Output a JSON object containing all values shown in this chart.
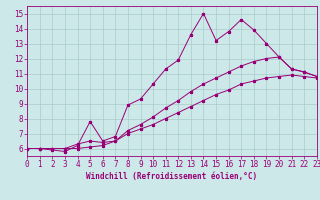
{
  "xlabel": "Windchill (Refroidissement éolien,°C)",
  "bg_color": "#cce8e8",
  "grid_color": "#aacccc",
  "line_color": "#990077",
  "xmin": 0,
  "xmax": 23,
  "ymin": 5.5,
  "ymax": 15.5,
  "yticks": [
    6,
    7,
    8,
    9,
    10,
    11,
    12,
    13,
    14,
    15
  ],
  "xticks": [
    0,
    1,
    2,
    3,
    4,
    5,
    6,
    7,
    8,
    9,
    10,
    11,
    12,
    13,
    14,
    15,
    16,
    17,
    18,
    19,
    20,
    21,
    22,
    23
  ],
  "line1_x": [
    0,
    1,
    2,
    3,
    4,
    5,
    6,
    7,
    8,
    9,
    10,
    11,
    12,
    13,
    14,
    15,
    16,
    17,
    18,
    19,
    20,
    21,
    22,
    23
  ],
  "line1_y": [
    6.0,
    6.0,
    5.9,
    5.8,
    6.2,
    7.8,
    6.5,
    6.8,
    8.9,
    9.3,
    10.3,
    11.3,
    11.9,
    13.6,
    15.0,
    13.2,
    13.8,
    14.6,
    13.9,
    13.0,
    12.1,
    11.3,
    11.1,
    10.8
  ],
  "line2_x": [
    0,
    1,
    2,
    3,
    4,
    5,
    6,
    7,
    8,
    9,
    10,
    11,
    12,
    13,
    14,
    15,
    16,
    17,
    18,
    19,
    20,
    21,
    22,
    23
  ],
  "line2_y": [
    6.0,
    6.0,
    6.0,
    6.0,
    6.3,
    6.5,
    6.4,
    6.5,
    7.2,
    7.6,
    8.1,
    8.7,
    9.2,
    9.8,
    10.3,
    10.7,
    11.1,
    11.5,
    11.8,
    12.0,
    12.1,
    11.3,
    11.1,
    10.8
  ],
  "line3_x": [
    0,
    1,
    2,
    3,
    4,
    5,
    6,
    7,
    8,
    9,
    10,
    11,
    12,
    13,
    14,
    15,
    16,
    17,
    18,
    19,
    20,
    21,
    22,
    23
  ],
  "line3_y": [
    6.0,
    6.0,
    6.0,
    6.0,
    6.0,
    6.1,
    6.2,
    6.5,
    7.0,
    7.3,
    7.6,
    8.0,
    8.4,
    8.8,
    9.2,
    9.6,
    9.9,
    10.3,
    10.5,
    10.7,
    10.8,
    10.9,
    10.8,
    10.7
  ],
  "tick_fontsize": 5.5,
  "xlabel_fontsize": 5.5,
  "lw": 0.7,
  "ms": 2.2
}
